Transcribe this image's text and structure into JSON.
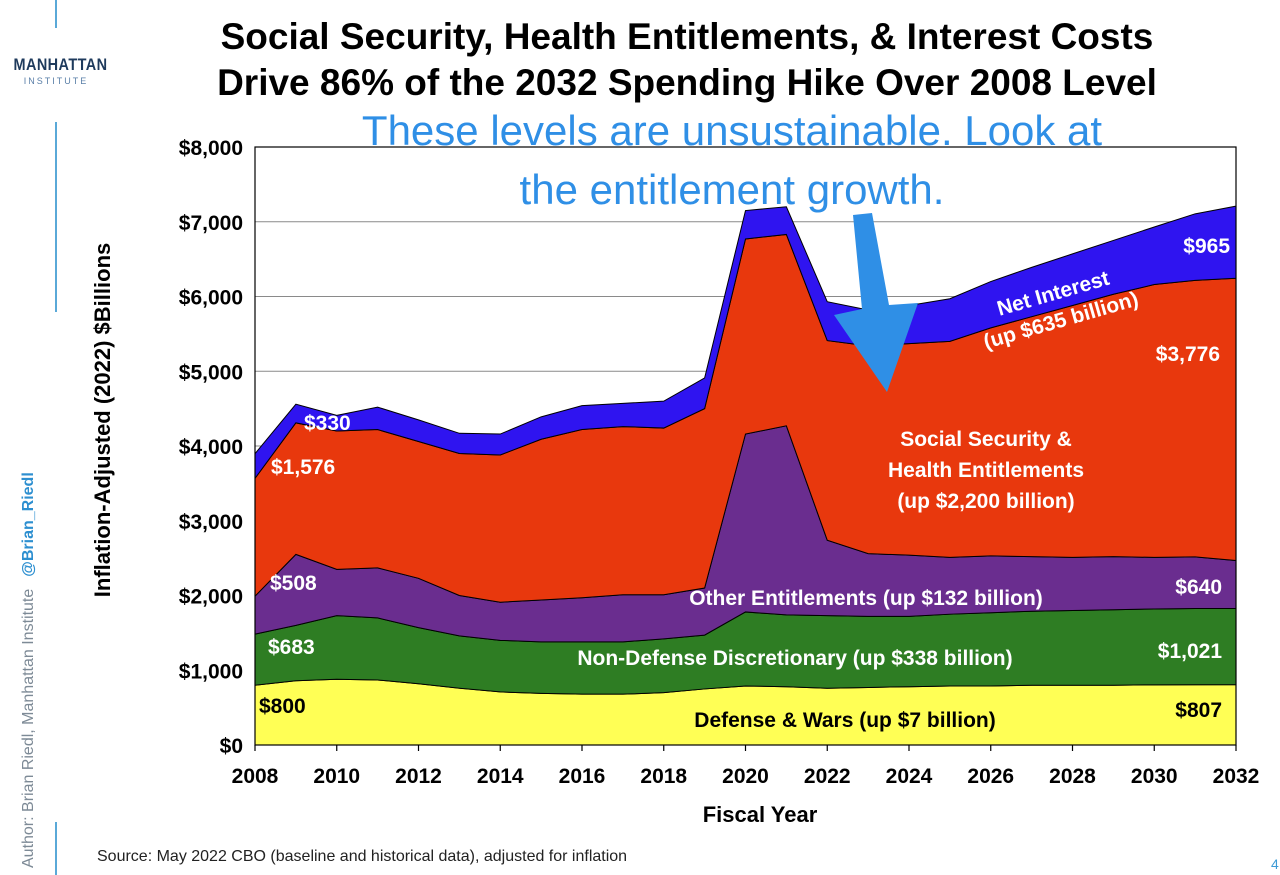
{
  "logo": {
    "name": "MANHATTAN",
    "sub": "INSTITUTE"
  },
  "title_line1": "Social Security, Health Entitlements, & Interest Costs",
  "title_line2": "Drive 86% of the 2032 Spending Hike Over 2008 Level",
  "author": {
    "text": "Author: Brian Riedl, Manhattan Institute",
    "handle": "@Brian_Riedl"
  },
  "source": "Source: May 2022 CBO (baseline and historical data), adjusted for inflation",
  "page_number": "4",
  "annotation": {
    "line1": "These levels are unsustainable. Look at",
    "line2": "the entitlement growth.",
    "color": "#2f8fe6"
  },
  "chart_data": {
    "type": "area",
    "stacked": true,
    "xlabel": "Fiscal Year",
    "ylabel": "Inflation-Adjusted (2022) $Billions",
    "x": [
      2008,
      2009,
      2010,
      2011,
      2012,
      2013,
      2014,
      2015,
      2016,
      2017,
      2018,
      2019,
      2020,
      2021,
      2022,
      2023,
      2024,
      2025,
      2026,
      2027,
      2028,
      2029,
      2030,
      2031,
      2032
    ],
    "xlim": [
      2008,
      2032
    ],
    "ylim": [
      0,
      8000
    ],
    "x_ticks": [
      "2008",
      "2010",
      "2012",
      "2014",
      "2016",
      "2018",
      "2020",
      "2022",
      "2024",
      "2026",
      "2028",
      "2030",
      "2032"
    ],
    "y_ticks": [
      "$0",
      "$1,000",
      "$2,000",
      "$3,000",
      "$4,000",
      "$5,000",
      "$6,000",
      "$7,000",
      "$8,000"
    ],
    "grid": true,
    "series": [
      {
        "name": "Defense & Wars (up $7 billion)",
        "color": "#ffff55",
        "values": [
          800,
          860,
          880,
          870,
          820,
          760,
          710,
          690,
          680,
          680,
          700,
          750,
          790,
          780,
          760,
          770,
          780,
          790,
          790,
          800,
          800,
          800,
          805,
          806,
          807
        ],
        "start_label": "$800",
        "end_label": "$807"
      },
      {
        "name": "Non-Defense Discretionary (up $338 billion)",
        "color": "#2e7d23",
        "values": [
          683,
          740,
          850,
          830,
          750,
          700,
          690,
          690,
          700,
          700,
          720,
          720,
          990,
          960,
          970,
          950,
          940,
          960,
          980,
          990,
          1000,
          1010,
          1015,
          1020,
          1021
        ],
        "start_label": "$683",
        "end_label": "$1,021"
      },
      {
        "name": "Other Entitlements (up $132 billion)",
        "color": "#6a2d8f",
        "values": [
          508,
          950,
          620,
          670,
          660,
          540,
          510,
          560,
          590,
          630,
          590,
          630,
          2380,
          2530,
          1010,
          840,
          820,
          760,
          760,
          730,
          710,
          710,
          690,
          690,
          640
        ],
        "start_label": "$508",
        "end_label": "$640"
      },
      {
        "name": "Social Security & Health Entitlements (up $2,200 billion)",
        "color": "#e8380d",
        "values": [
          1576,
          1760,
          1850,
          1850,
          1830,
          1900,
          1970,
          2150,
          2250,
          2250,
          2230,
          2400,
          2610,
          2560,
          2670,
          2780,
          2830,
          2890,
          3050,
          3210,
          3370,
          3510,
          3650,
          3700,
          3776
        ],
        "start_label": "$1,576",
        "end_label": "$3,776"
      },
      {
        "name": "Net Interest (up $635 billion)",
        "color": "#2f14f0",
        "values": [
          330,
          250,
          210,
          300,
          290,
          270,
          280,
          300,
          320,
          310,
          360,
          410,
          380,
          370,
          520,
          480,
          510,
          570,
          620,
          660,
          690,
          720,
          770,
          890,
          965
        ],
        "start_label": "$330",
        "end_label": "$965"
      }
    ]
  }
}
